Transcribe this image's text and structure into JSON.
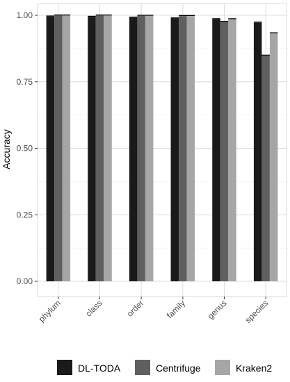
{
  "chart_data": {
    "type": "bar",
    "ylabel": "Accuracy",
    "xlabel": "",
    "ylim": [
      0,
      1.0
    ],
    "yticks": [
      "0.00",
      "0.25",
      "0.50",
      "0.75",
      "1.00"
    ],
    "ytick_values": [
      0,
      0.25,
      0.5,
      0.75,
      1.0
    ],
    "categories": [
      "phylum",
      "class",
      "order",
      "family",
      "genus",
      "species"
    ],
    "series": [
      {
        "name": "DL-TODA",
        "color": "#1a1a1a",
        "values": [
          0.995,
          0.994,
          0.991,
          0.988,
          0.985,
          0.972
        ]
      },
      {
        "name": "Centrifuge",
        "color": "#5f5f5f",
        "values": [
          0.999,
          0.999,
          0.998,
          0.997,
          0.975,
          0.848
        ]
      },
      {
        "name": "Kraken2",
        "color": "#a6a6a6",
        "values": [
          0.999,
          0.999,
          0.998,
          0.997,
          0.985,
          0.932
        ]
      }
    ],
    "grid": true,
    "legend_position": "bottom"
  }
}
